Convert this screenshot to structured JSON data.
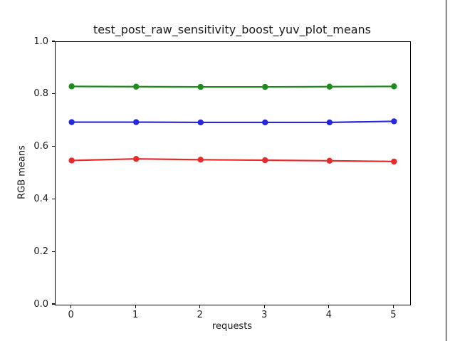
{
  "figure": {
    "background_color": "#ffffff",
    "spine_color": "#000000",
    "text_color": "#1a1a1a"
  },
  "chart_data": {
    "type": "line",
    "title": "test_post_raw_sensitivity_boost_yuv_plot_means",
    "xlabel": "requests",
    "ylabel": "RGB means",
    "x": [
      0,
      1,
      2,
      3,
      4,
      5
    ],
    "series": [
      {
        "name": "red",
        "color": "#e62b2b",
        "values": [
          0.549,
          0.555,
          0.552,
          0.55,
          0.548,
          0.545
        ]
      },
      {
        "name": "green",
        "color": "#1f8b1f",
        "values": [
          0.831,
          0.83,
          0.829,
          0.829,
          0.83,
          0.831
        ]
      },
      {
        "name": "blue",
        "color": "#2727dd",
        "values": [
          0.695,
          0.695,
          0.694,
          0.694,
          0.694,
          0.698
        ]
      }
    ],
    "xlim": [
      -0.25,
      5.25
    ],
    "ylim": [
      0.0,
      1.0
    ],
    "xticks": {
      "values": [
        0,
        1,
        2,
        3,
        4,
        5
      ],
      "labels": [
        "0",
        "1",
        "2",
        "3",
        "4",
        "5"
      ]
    },
    "yticks": {
      "values": [
        0.0,
        0.2,
        0.4,
        0.6,
        0.8,
        1.0
      ],
      "labels": [
        "0.0",
        "0.2",
        "0.4",
        "0.6",
        "0.8",
        "1.0"
      ]
    },
    "grid": false,
    "legend": null,
    "marker": "circle",
    "marker_radius": 4.2,
    "line_width": 2.2
  }
}
